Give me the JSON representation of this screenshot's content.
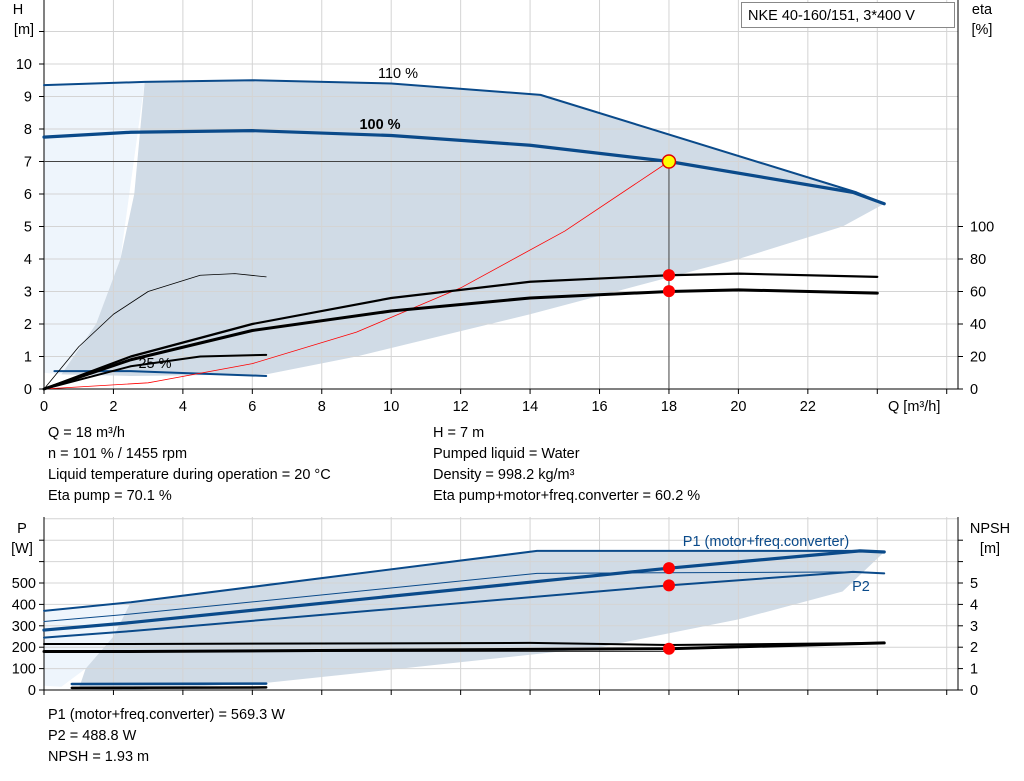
{
  "title": "NKE 40-160/151, 3*400 V",
  "colors": {
    "curve_blue": "#0a4a8a",
    "shade": "#d0dbe6",
    "shade_light": "#eef5fc",
    "system_curve": "#ff0000",
    "point": "#ff0000",
    "duty_point": "#ffff00"
  },
  "info_top": {
    "left": [
      "Q = 18 m³/h",
      "n = 101 % / 1455 rpm",
      "Liquid temperature during operation = 20 °C",
      "Eta pump = 70.1 %"
    ],
    "right": [
      "H = 7 m",
      "Pumped liquid = Water",
      "Density = 998.2 kg/m³",
      "Eta pump+motor+freq.converter = 60.2 %"
    ]
  },
  "info_bottom": [
    "P1 (motor+freq.converter) = 569.3 W",
    "P2 = 488.8 W",
    "NPSH = 1.93 m"
  ],
  "chart_data": [
    {
      "type": "line",
      "xlabel": "Q [m³/h]",
      "ylabel": "H\n[m]",
      "ylabel_right": "eta\n[%]",
      "xlim": [
        0,
        26
      ],
      "ylim": [
        0,
        12
      ],
      "y2lim": [
        0,
        240
      ],
      "xticks": [
        "0",
        "2",
        "4",
        "6",
        "8",
        "10",
        "12",
        "14",
        "16",
        "18",
        "20",
        "22"
      ],
      "yticks": [
        "0",
        "1",
        "2",
        "3",
        "4",
        "5",
        "6",
        "7",
        "8",
        "9",
        "10"
      ],
      "y2ticks": [
        "0",
        "20",
        "40",
        "60",
        "80",
        "100"
      ],
      "grid": true,
      "curve_labels": [
        "110 %",
        "100 %",
        "25 %"
      ],
      "series": [
        {
          "label_ref": "110 %",
          "axis": "H",
          "points": [
            [
              0,
              9.35
            ],
            [
              2.9,
              9.45
            ],
            [
              6,
              9.5
            ],
            [
              10,
              9.4
            ],
            [
              14.3,
              9.05
            ],
            [
              23.4,
              6.05
            ],
            [
              24.2,
              5.7
            ]
          ]
        },
        {
          "label_ref": "100 %",
          "axis": "H",
          "points": [
            [
              0,
              7.75
            ],
            [
              2.5,
              7.9
            ],
            [
              6,
              7.95
            ],
            [
              10,
              7.8
            ],
            [
              14,
              7.5
            ],
            [
              18,
              7.0
            ],
            [
              23.3,
              6.05
            ],
            [
              24.2,
              5.7
            ]
          ]
        },
        {
          "label_ref": "25 %",
          "axis": "H",
          "points": [
            [
              0.3,
              0.55
            ],
            [
              2.5,
              0.55
            ],
            [
              6.4,
              0.4
            ]
          ]
        },
        {
          "axis": "system",
          "points": [
            [
              0,
              0
            ],
            [
              3,
              0.19
            ],
            [
              6,
              0.78
            ],
            [
              9,
              1.75
            ],
            [
              12,
              3.11
            ],
            [
              15,
              4.86
            ],
            [
              18,
              7.0
            ]
          ]
        },
        {
          "axis": "eta",
          "points": [
            [
              0,
              0
            ],
            [
              2.5,
              20
            ],
            [
              6,
              40
            ],
            [
              10,
              56
            ],
            [
              14,
              66
            ],
            [
              18,
              70
            ],
            [
              20,
              71
            ],
            [
              24,
              69
            ]
          ]
        },
        {
          "axis": "eta",
          "points": [
            [
              0,
              0
            ],
            [
              2.5,
              18
            ],
            [
              6,
              36
            ],
            [
              10,
              48
            ],
            [
              14,
              56
            ],
            [
              18,
              60
            ],
            [
              20,
              61
            ],
            [
              24,
              59
            ]
          ]
        },
        {
          "axis": "eta",
          "points": [
            [
              0,
              0
            ],
            [
              1,
              26
            ],
            [
              2,
              46
            ],
            [
              3,
              60
            ],
            [
              4.5,
              70
            ],
            [
              5.5,
              71
            ],
            [
              6.4,
              69
            ]
          ]
        },
        {
          "axis": "eta",
          "points": [
            [
              0,
              0
            ],
            [
              2.5,
              14
            ],
            [
              4.5,
              20
            ],
            [
              6.4,
              21
            ]
          ]
        }
      ],
      "duty_point": {
        "Q": 18,
        "H": 7
      },
      "markers_eta": [
        70.1,
        60.2
      ]
    },
    {
      "type": "line",
      "ylabel": "P\n[W]",
      "ylabel_right": "NPSH\n[m]",
      "xlim": [
        0,
        26
      ],
      "ylim": [
        0,
        800
      ],
      "y2lim": [
        0,
        8
      ],
      "yticks": [
        "0",
        "100",
        "200",
        "300",
        "400",
        "500"
      ],
      "y2ticks": [
        "0",
        "1",
        "2",
        "3",
        "4",
        "5"
      ],
      "curve_labels": [
        "P1 (motor+freq.converter)",
        "P2"
      ],
      "series": [
        {
          "axis": "P",
          "points": [
            [
              0,
              370
            ],
            [
              2.5,
              410
            ],
            [
              14.2,
              650
            ],
            [
              23.5,
              650
            ],
            [
              24.2,
              645
            ]
          ]
        },
        {
          "label_ref": "P1 (motor+freq.converter)",
          "axis": "P",
          "points": [
            [
              0,
              280
            ],
            [
              2.5,
              315
            ],
            [
              18,
              569.3
            ],
            [
              23.5,
              650
            ],
            [
              24.2,
              645
            ]
          ]
        },
        {
          "axis": "P",
          "points": [
            [
              0,
              320
            ],
            [
              2.5,
              355
            ],
            [
              14.2,
              545
            ],
            [
              23.5,
              552
            ],
            [
              24.2,
              545
            ]
          ]
        },
        {
          "label_ref": "P2",
          "axis": "P",
          "points": [
            [
              0,
              245
            ],
            [
              2.5,
              275
            ],
            [
              18,
              488.8
            ],
            [
              23.3,
              552
            ],
            [
              24.2,
              545
            ]
          ]
        },
        {
          "axis": "NPSH",
          "points": [
            [
              0,
              2.15
            ],
            [
              2.5,
              2.15
            ],
            [
              14,
              2.2
            ],
            [
              18,
              2.1
            ],
            [
              24.2,
              2.2
            ]
          ]
        },
        {
          "axis": "NPSH",
          "points": [
            [
              0,
              1.8
            ],
            [
              2.5,
              1.8
            ],
            [
              18,
              1.93
            ],
            [
              24.2,
              2.2
            ]
          ]
        },
        {
          "axis": "P",
          "points": [
            [
              0.8,
              28
            ],
            [
              6.4,
              30
            ]
          ]
        },
        {
          "axis": "P",
          "points": [
            [
              0.8,
              10
            ],
            [
              6.4,
              12
            ]
          ]
        }
      ],
      "markers": [
        {
          "Q": 18,
          "P": 569.3
        },
        {
          "Q": 18,
          "P": 488.8
        },
        {
          "Q": 18,
          "NPSH": 1.93
        }
      ]
    }
  ]
}
